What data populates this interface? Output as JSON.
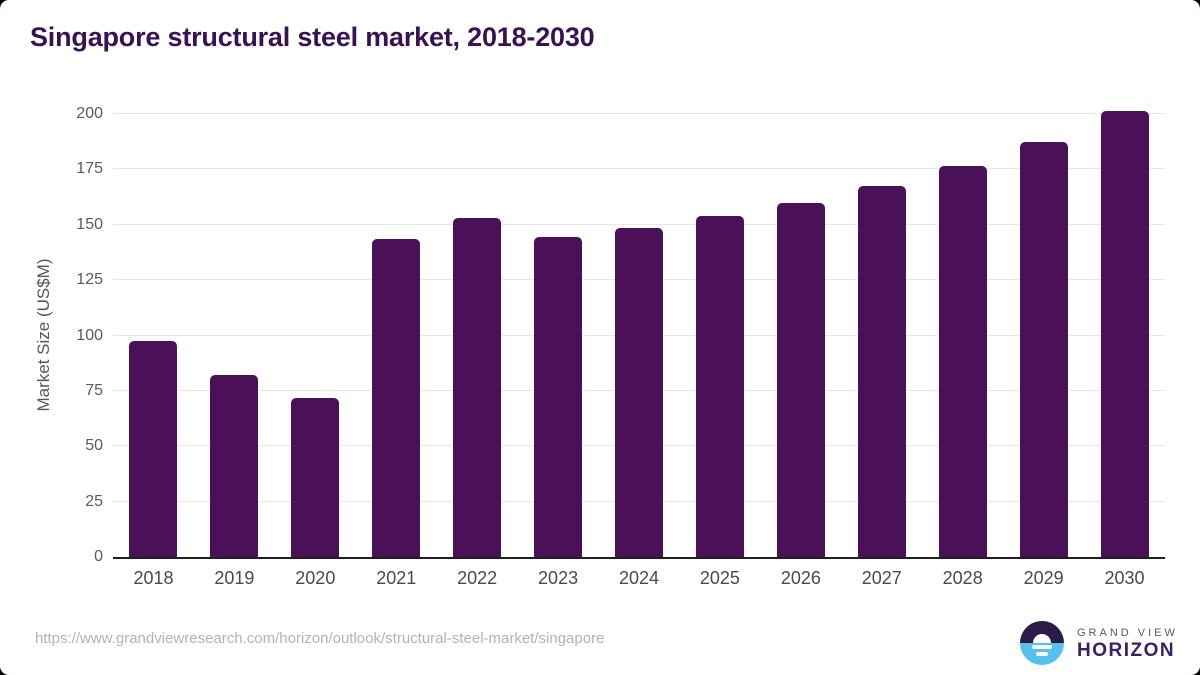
{
  "title": "Singapore structural steel market, 2018-2030",
  "chart_data": {
    "type": "bar",
    "title": "Singapore structural steel market, 2018-2030",
    "categories": [
      "2018",
      "2019",
      "2020",
      "2021",
      "2022",
      "2023",
      "2024",
      "2025",
      "2026",
      "2027",
      "2028",
      "2029",
      "2030"
    ],
    "values": [
      97.6,
      82.3,
      72.0,
      143.7,
      153.0,
      144.6,
      148.4,
      153.8,
      159.9,
      167.4,
      176.7,
      187.5,
      201.3
    ],
    "xlabel": "",
    "ylabel": "Market Size (US$M)",
    "ylim": [
      0,
      200
    ],
    "yticks": [
      0,
      25,
      50,
      75,
      100,
      125,
      150,
      175,
      200
    ],
    "grid": true,
    "legend": false,
    "bar_color": "#4A1159",
    "gridline_color": "#E8E8E8",
    "axis_line_color": "#1F1F1F",
    "title_color": "#3A1254"
  },
  "footer": {
    "source_url": "https://www.grandviewresearch.com/horizon/outlook/structural-steel-market/singapore",
    "logo": {
      "line1": "GRAND VIEW",
      "line2": "HORIZON",
      "icon_top_color": "#2C1A47",
      "icon_bottom_color": "#56C1EE"
    }
  }
}
